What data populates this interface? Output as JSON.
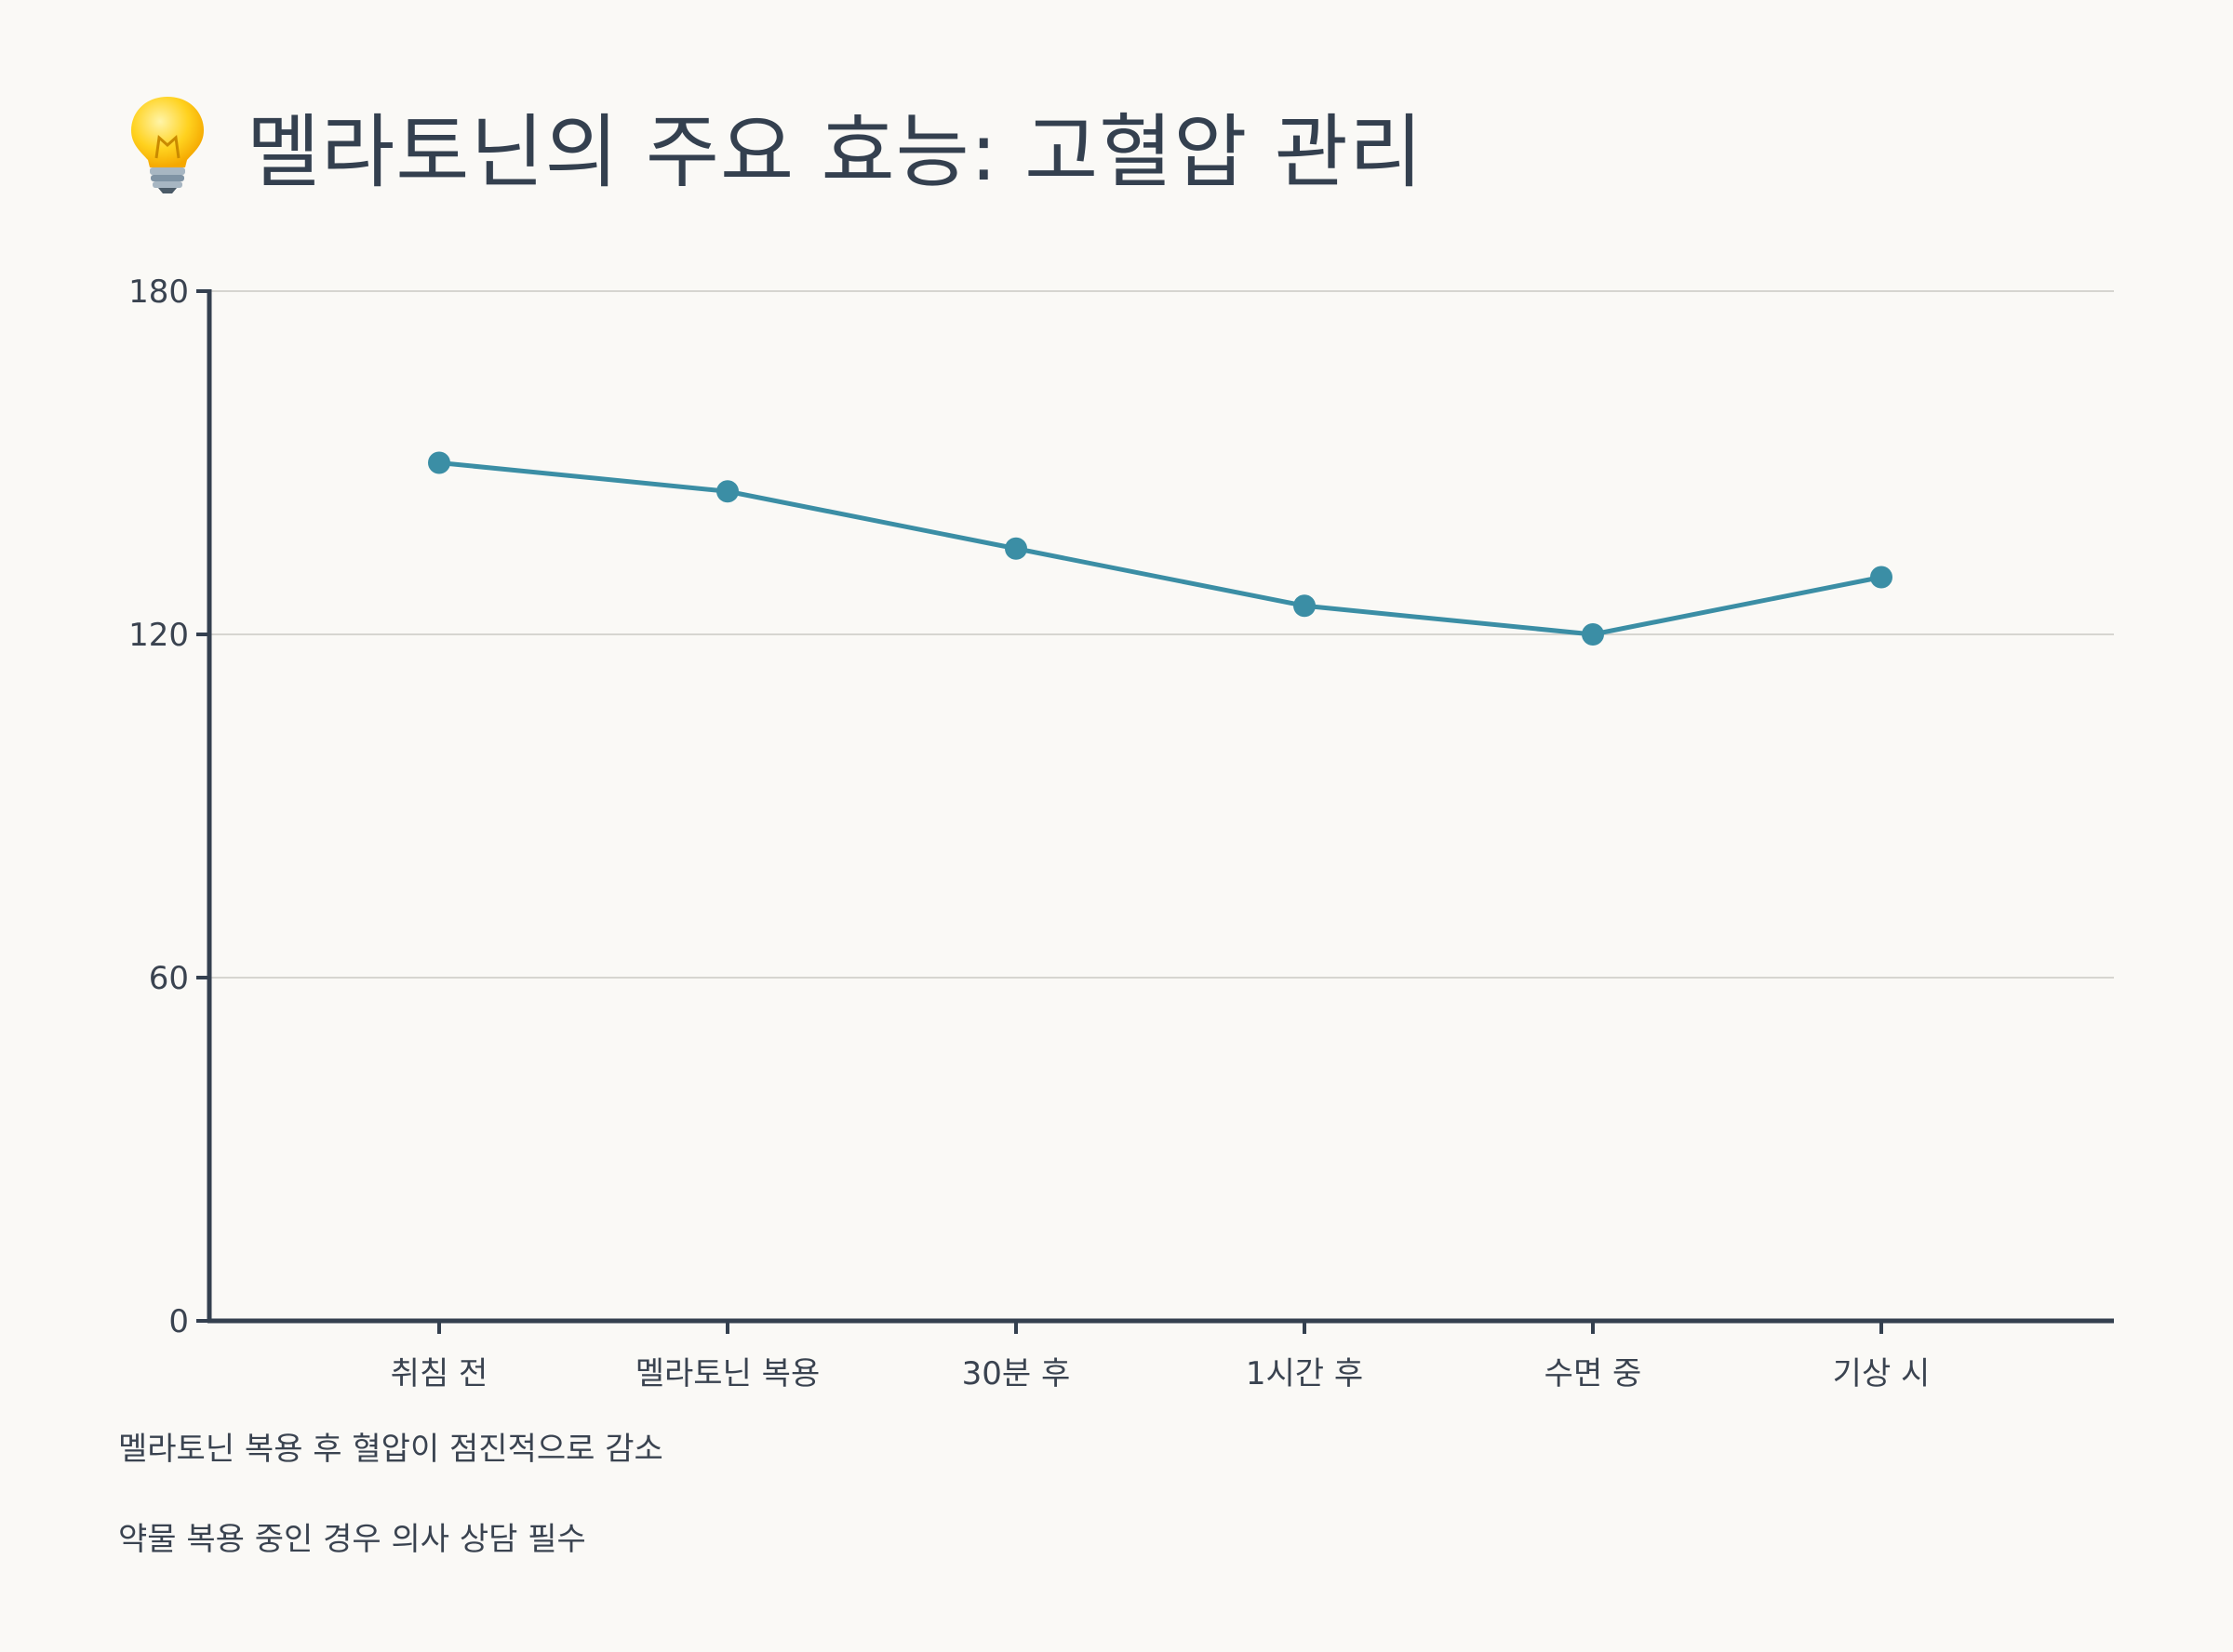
{
  "title": "멜라토닌의 주요 효능: 고혈압 관리",
  "title_icon": "lightbulb-icon",
  "colors": {
    "background": "#faf9f6",
    "line": "#3b8ea5",
    "axis": "#34404f",
    "grid": "#d6d5d0",
    "text": "#34404f"
  },
  "chart_data": {
    "type": "line",
    "categories": [
      "취침 전",
      "멜라토닌 복용",
      "30분 후",
      "1시간 후",
      "수면 중",
      "기상 시"
    ],
    "series": [
      {
        "values": [
          150,
          145,
          135,
          125,
          120,
          130
        ]
      }
    ],
    "ylim": [
      0,
      180
    ],
    "yticks": [
      0,
      60,
      120,
      180
    ],
    "grid": true,
    "title": "",
    "xlabel": "",
    "ylabel": ""
  },
  "notes": [
    "멜라토닌 복용 후 혈압이 점진적으로 감소",
    "약물 복용 중인 경우 의사 상담 필수"
  ]
}
